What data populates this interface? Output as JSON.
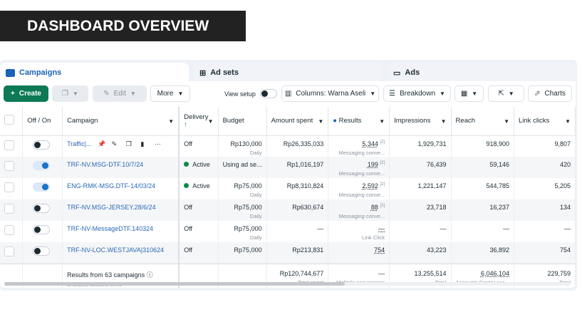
{
  "title": "DASHBOARD OVERVIEW",
  "tabs": [
    {
      "label": "Campaigns",
      "icon": "folder-icon"
    },
    {
      "label": "Ad sets",
      "icon": "grid-icon"
    },
    {
      "label": "Ads",
      "icon": "window-icon"
    }
  ],
  "toolbar": {
    "create": "Create",
    "edit": "Edit",
    "more": "More",
    "view_setup": "View setup",
    "columns": "Columns: Warna Aseli",
    "breakdown": "Breakdown",
    "charts": "Charts"
  },
  "headers": {
    "offon": "Off / On",
    "campaign": "Campaign",
    "delivery": "Delivery",
    "budget": "Budget",
    "amount": "Amount spent",
    "results": "Results",
    "impressions": "Impressions",
    "reach": "Reach",
    "link_clicks": "Link clicks"
  },
  "rows": [
    {
      "on": false,
      "name": "Traffic|...",
      "delivery": "Off",
      "budget": "Rp130,000",
      "budget_sub": "Daily",
      "amount": "Rp26,335,033",
      "results": "5,344",
      "results_sup": "[2]",
      "results_sub": "Messaging conve...",
      "impressions": "1,929,731",
      "reach": "918,900",
      "clicks": "9,807"
    },
    {
      "on": true,
      "name": "TRF-NV.MSG-DTF.10/7/24",
      "delivery": "Active",
      "budget": "Using ad se...",
      "budget_sub": "",
      "amount": "Rp1,016,197",
      "results": "199",
      "results_sup": "[2]",
      "results_sub": "Messaging conve...",
      "impressions": "76,439",
      "reach": "59,146",
      "clicks": "420"
    },
    {
      "on": true,
      "name": "ENG-RMK-MSG.DTF-14/03/24",
      "delivery": "Active",
      "budget": "Rp75,000",
      "budget_sub": "Daily",
      "amount": "Rp8,310,824",
      "results": "2,592",
      "results_sup": "[2]",
      "results_sub": "Messaging conve...",
      "impressions": "1,221,147",
      "reach": "544,785",
      "clicks": "5,205"
    },
    {
      "on": false,
      "name": "TRF-NV.MSG-JERSEY.28/6/24",
      "delivery": "Off",
      "budget": "Rp75,000",
      "budget_sub": "Daily",
      "amount": "Rp630,674",
      "results": "88",
      "results_sup": "[2]",
      "results_sub": "Messaging conve...",
      "impressions": "23,718",
      "reach": "16,237",
      "clicks": "134"
    },
    {
      "on": false,
      "name": "TRF-NV-MessageDTF.140324",
      "delivery": "Off",
      "budget": "Rp75,000",
      "budget_sub": "Daily",
      "amount": "—",
      "results": "—",
      "results_sup": "",
      "results_sub": "Link Click",
      "impressions": "—",
      "reach": "—",
      "clicks": "—"
    },
    {
      "on": false,
      "name": "TRF-NV-LOC.WESTJAVA|310624",
      "delivery": "Off",
      "budget": "Rp75,000",
      "budget_sub": "",
      "amount": "Rp213,831",
      "results": "754",
      "results_sup": "",
      "results_sub": "",
      "impressions": "43,223",
      "reach": "36,892",
      "clicks": "754"
    }
  ],
  "footer": {
    "label": "Results from 63 campaigns",
    "sub": "Excludes deleted items",
    "amount": "Rp120,744,677",
    "amount_sub": "Total spent",
    "results": "—",
    "results_sub": "Multiple conversions",
    "impressions": "13,255,514",
    "impressions_sub": "Total",
    "reach": "6,046,104",
    "reach_sub": "Accounts Center acc...",
    "clicks": "229,759",
    "clicks_sub": "Total"
  },
  "colors": {
    "accent": "#0d7a55",
    "link": "#2a69b6",
    "toggle_on": "#1a73c8"
  }
}
